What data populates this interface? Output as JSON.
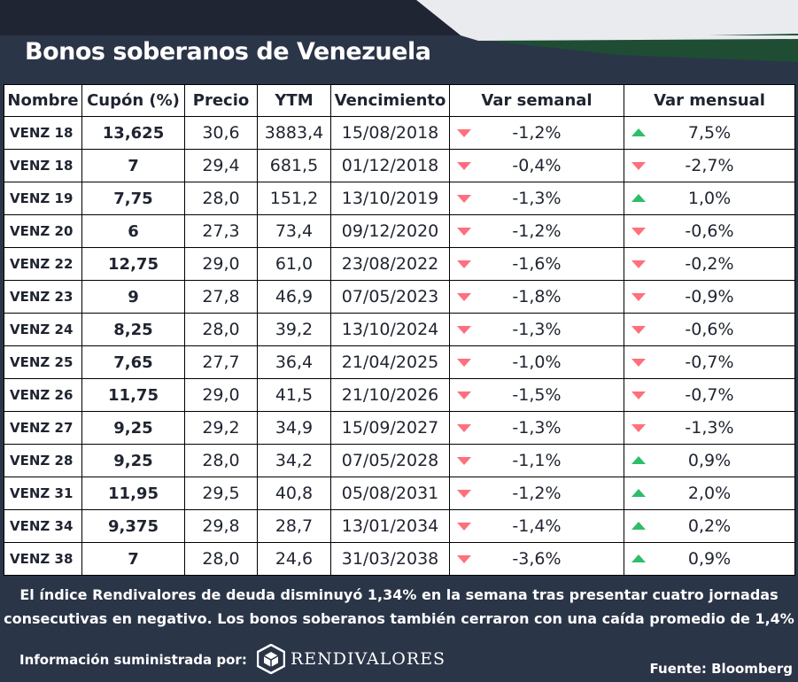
{
  "header": {
    "title": "Bonos soberanos de Venezuela"
  },
  "colors": {
    "background": "#2b3548",
    "banner_dark": "#1f2533",
    "banner_light": "#e9ebee",
    "banner_green": "#1e4d34",
    "down": "#ff6f7d",
    "up": "#2ebd6b"
  },
  "table": {
    "headers": [
      "Nombre",
      "Cupón (%)",
      "Precio",
      "YTM",
      "Vencimiento",
      "Var semanal",
      "Var mensual"
    ],
    "rows": [
      {
        "name": "VENZ 18",
        "coupon": "13,625",
        "price": "30,6",
        "ytm": "3883,4",
        "maturity": "15/08/2018",
        "weekly": "-1,2%",
        "weekly_dir": "down",
        "monthly": "7,5%",
        "monthly_dir": "up"
      },
      {
        "name": "VENZ 18",
        "coupon": "7",
        "price": "29,4",
        "ytm": "681,5",
        "maturity": "01/12/2018",
        "weekly": "-0,4%",
        "weekly_dir": "down",
        "monthly": "-2,7%",
        "monthly_dir": "down"
      },
      {
        "name": "VENZ 19",
        "coupon": "7,75",
        "price": "28,0",
        "ytm": "151,2",
        "maturity": "13/10/2019",
        "weekly": "-1,3%",
        "weekly_dir": "down",
        "monthly": "1,0%",
        "monthly_dir": "up"
      },
      {
        "name": "VENZ 20",
        "coupon": "6",
        "price": "27,3",
        "ytm": "73,4",
        "maturity": "09/12/2020",
        "weekly": "-1,2%",
        "weekly_dir": "down",
        "monthly": "-0,6%",
        "monthly_dir": "down"
      },
      {
        "name": "VENZ 22",
        "coupon": "12,75",
        "price": "29,0",
        "ytm": "61,0",
        "maturity": "23/08/2022",
        "weekly": "-1,6%",
        "weekly_dir": "down",
        "monthly": "-0,2%",
        "monthly_dir": "down"
      },
      {
        "name": "VENZ 23",
        "coupon": "9",
        "price": "27,8",
        "ytm": "46,9",
        "maturity": "07/05/2023",
        "weekly": "-1,8%",
        "weekly_dir": "down",
        "monthly": "-0,9%",
        "monthly_dir": "down"
      },
      {
        "name": "VENZ 24",
        "coupon": "8,25",
        "price": "28,0",
        "ytm": "39,2",
        "maturity": "13/10/2024",
        "weekly": "-1,3%",
        "weekly_dir": "down",
        "monthly": "-0,6%",
        "monthly_dir": "down"
      },
      {
        "name": "VENZ 25",
        "coupon": "7,65",
        "price": "27,7",
        "ytm": "36,4",
        "maturity": "21/04/2025",
        "weekly": "-1,0%",
        "weekly_dir": "down",
        "monthly": "-0,7%",
        "monthly_dir": "down"
      },
      {
        "name": "VENZ 26",
        "coupon": "11,75",
        "price": "29,0",
        "ytm": "41,5",
        "maturity": "21/10/2026",
        "weekly": "-1,5%",
        "weekly_dir": "down",
        "monthly": "-0,7%",
        "monthly_dir": "down"
      },
      {
        "name": "VENZ 27",
        "coupon": "9,25",
        "price": "29,2",
        "ytm": "34,9",
        "maturity": "15/09/2027",
        "weekly": "-1,3%",
        "weekly_dir": "down",
        "monthly": "-1,3%",
        "monthly_dir": "down"
      },
      {
        "name": "VENZ 28",
        "coupon": "9,25",
        "price": "28,0",
        "ytm": "34,2",
        "maturity": "07/05/2028",
        "weekly": "-1,1%",
        "weekly_dir": "down",
        "monthly": "0,9%",
        "monthly_dir": "up"
      },
      {
        "name": "VENZ 31",
        "coupon": "11,95",
        "price": "29,5",
        "ytm": "40,8",
        "maturity": "05/08/2031",
        "weekly": "-1,2%",
        "weekly_dir": "down",
        "monthly": "2,0%",
        "monthly_dir": "up"
      },
      {
        "name": "VENZ 34",
        "coupon": "9,375",
        "price": "29,8",
        "ytm": "28,7",
        "maturity": "13/01/2034",
        "weekly": "-1,4%",
        "weekly_dir": "down",
        "monthly": "0,2%",
        "monthly_dir": "up"
      },
      {
        "name": "VENZ 38",
        "coupon": "7",
        "price": "28,0",
        "ytm": "24,6",
        "maturity": "31/03/2038",
        "weekly": "-3,6%",
        "weekly_dir": "down",
        "monthly": "0,9%",
        "monthly_dir": "up"
      }
    ]
  },
  "note": {
    "line1": "El índice Rendivalores de deuda disminuyó 1,34% en la semana tras presentar cuatro jornadas",
    "line2": "consecutivas en negativo. Los bonos soberanos también cerraron con una caída promedio de 1,4%"
  },
  "footer": {
    "provided_by": "Información suministrada por:",
    "logo_text": "RENDIVALORES",
    "logo_icon": "cube-icon",
    "source": "Fuente: Bloomberg"
  }
}
